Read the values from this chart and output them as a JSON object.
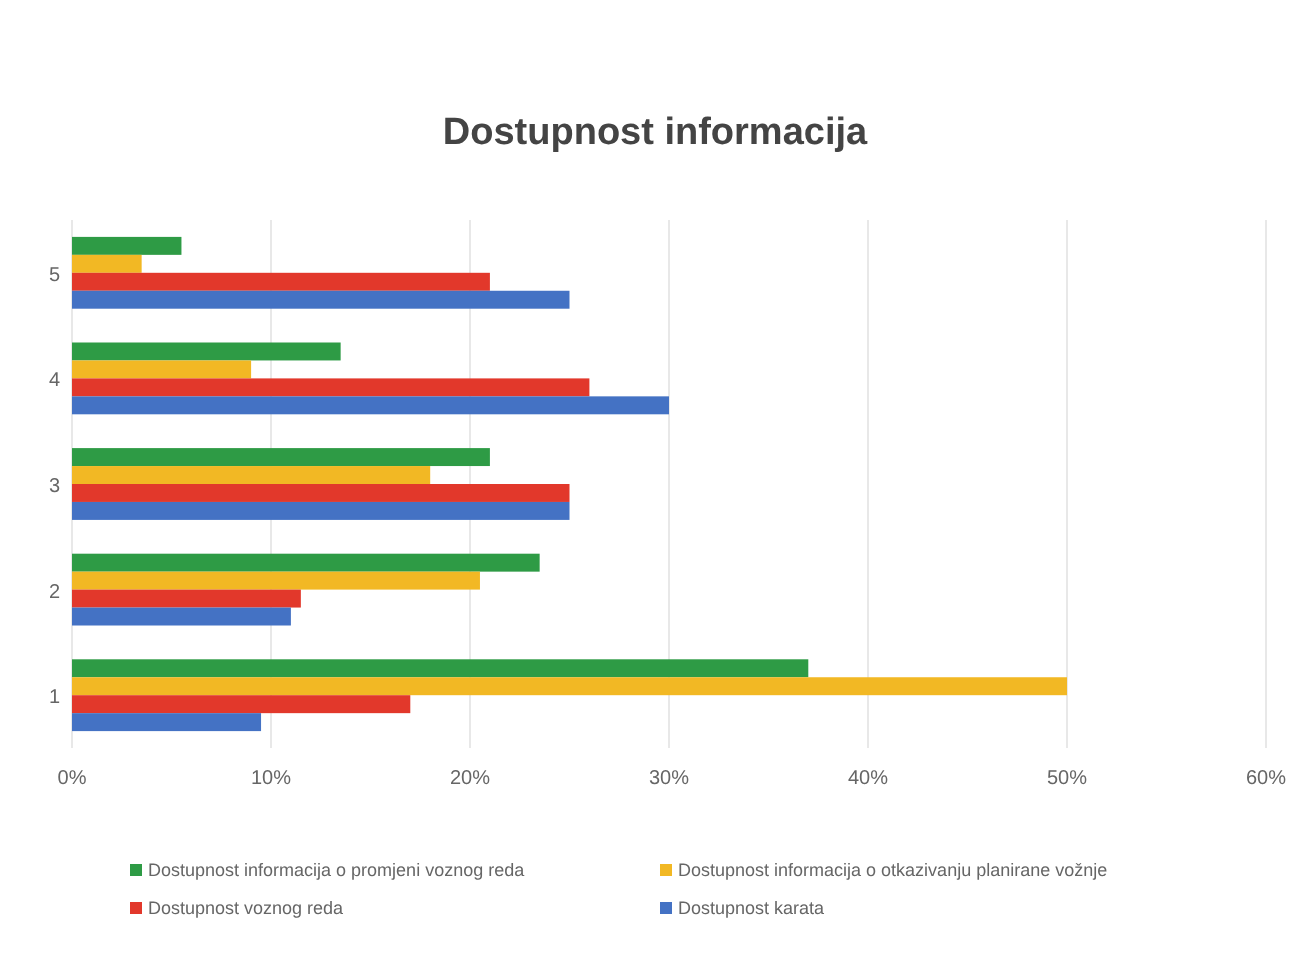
{
  "chart_data": {
    "type": "bar",
    "orientation": "horizontal",
    "title": "Dostupnost informacija",
    "categories": [
      "5",
      "4",
      "3",
      "2",
      "1"
    ],
    "series": [
      {
        "name": "Dostupnost informacija o promjeni voznog reda",
        "color": "#2e9b45",
        "values": [
          5.5,
          13.5,
          21,
          23.5,
          37
        ]
      },
      {
        "name": "Dostupnost informacija o otkazivanju planirane vožnje",
        "color": "#f2b824",
        "values": [
          3.5,
          9,
          18,
          20.5,
          50
        ]
      },
      {
        "name": "Dostupnost voznog reda",
        "color": "#e2382b",
        "values": [
          21,
          26,
          25,
          11.5,
          17
        ]
      },
      {
        "name": "Dostupnost karata",
        "color": "#4472c4",
        "values": [
          25,
          30,
          25,
          11,
          9.5
        ]
      }
    ],
    "xlim": [
      0,
      60
    ],
    "xticks": [
      {
        "value": 0,
        "label": "0%"
      },
      {
        "value": 10,
        "label": "10%"
      },
      {
        "value": 20,
        "label": "20%"
      },
      {
        "value": 30,
        "label": "30%"
      },
      {
        "value": 40,
        "label": "40%"
      },
      {
        "value": 50,
        "label": "50%"
      },
      {
        "value": 60,
        "label": "60%"
      }
    ],
    "grid": "x",
    "legend": "bottom"
  }
}
